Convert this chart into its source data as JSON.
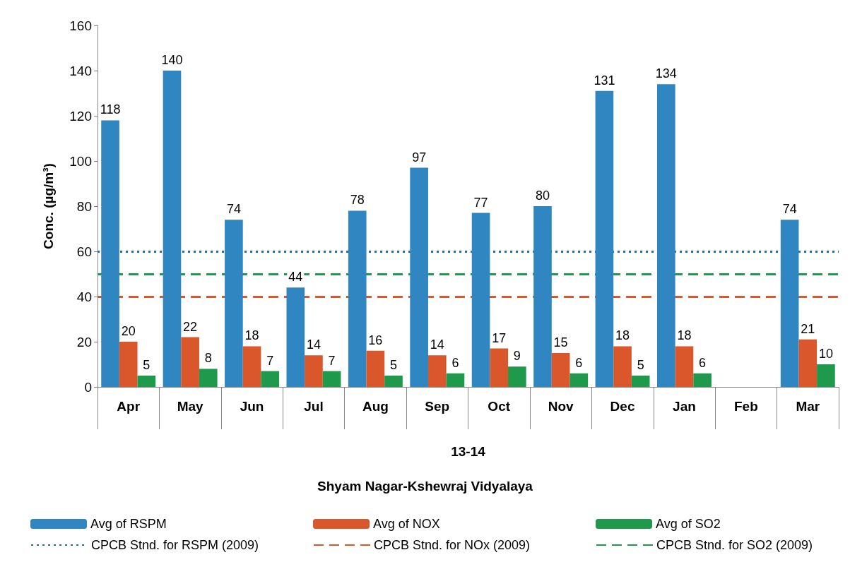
{
  "chart_data": {
    "type": "bar",
    "categories": [
      "Apr",
      "May",
      "Jun",
      "Jul",
      "Aug",
      "Sep",
      "Oct",
      "Nov",
      "Dec",
      "Jan",
      "Feb",
      "Mar"
    ],
    "xlabel": "13-14",
    "ylabel": "Conc. (µg/m³)",
    "annotations": [
      "Shyam Nagar-Kshewraj Vidyalaya"
    ],
    "series": [
      {
        "name": "Avg of RSPM",
        "color": "#2f86c0",
        "values": [
          118,
          140,
          74,
          44,
          78,
          97,
          77,
          80,
          131,
          134,
          null,
          74
        ]
      },
      {
        "name": "Avg of NOX",
        "color": "#d9572b",
        "values": [
          20,
          22,
          18,
          14,
          16,
          14,
          17,
          15,
          18,
          18,
          null,
          21
        ]
      },
      {
        "name": "Avg of SO2",
        "color": "#1f9a4c",
        "values": [
          5,
          8,
          7,
          7,
          5,
          6,
          9,
          6,
          5,
          6,
          null,
          10
        ]
      }
    ],
    "ref_lines": [
      {
        "axis": "y",
        "value": 60,
        "label": "CPCB Stnd. for RSPM (2009)",
        "color": "#1f6fa8",
        "line_style": "dotted"
      },
      {
        "axis": "y",
        "value": 40,
        "label": "CPCB Stnd. for NOx (2009)",
        "color": "#d9572b",
        "line_style": "dashed"
      },
      {
        "axis": "y",
        "value": 50,
        "label": "CPCB Stnd. for SO2 (2009)",
        "color": "#1f9a4c",
        "line_style": "dashed"
      }
    ],
    "ylim": [
      0,
      160
    ],
    "yticks": [
      0,
      20,
      40,
      60,
      80,
      100,
      120,
      140,
      160
    ],
    "data_labels": true,
    "legend": "bottom"
  }
}
